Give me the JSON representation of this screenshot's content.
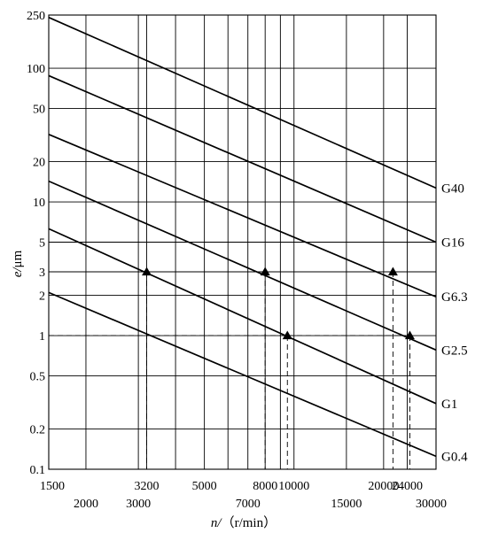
{
  "chart_data": {
    "type": "line",
    "xscale": "log",
    "yscale": "log",
    "xlim": [
      1500,
      30000
    ],
    "ylim": [
      0.1,
      250
    ],
    "xlabel": {
      "var": "n/",
      "unit": "（r/min）"
    },
    "ylabel": {
      "var": "e/",
      "unit": "μm"
    },
    "y_ticks": [
      0.1,
      0.2,
      0.5,
      1,
      2,
      3,
      5,
      10,
      20,
      50,
      100,
      250
    ],
    "x_ticks_top": [
      1500,
      3200,
      5000,
      8000,
      10000,
      20000,
      24000
    ],
    "x_ticks_bottom": [
      2000,
      3000,
      7000,
      15000,
      30000
    ],
    "x_gridlines": [
      1500,
      2000,
      3000,
      3200,
      4000,
      5000,
      6000,
      7000,
      8000,
      9000,
      10000,
      15000,
      20000,
      24000,
      30000
    ],
    "series": [
      {
        "name": "G40",
        "x": [
          1500,
          30000
        ],
        "y": [
          240,
          12.7
        ]
      },
      {
        "name": "G16",
        "x": [
          1500,
          30000
        ],
        "y": [
          88,
          5.0
        ]
      },
      {
        "name": "G6.3",
        "x": [
          1500,
          30000
        ],
        "y": [
          32,
          1.95
        ]
      },
      {
        "name": "G2.5",
        "x": [
          1500,
          30000
        ],
        "y": [
          14.3,
          0.78
        ]
      },
      {
        "name": "G1",
        "x": [
          1500,
          30000
        ],
        "y": [
          6.3,
          0.31
        ]
      },
      {
        "name": "G0.4",
        "x": [
          1500,
          30000
        ],
        "y": [
          2.1,
          0.125
        ]
      }
    ],
    "markers": [
      {
        "x": 3200,
        "y": 3
      },
      {
        "x": 8000,
        "y": 3
      },
      {
        "x": 21500,
        "y": 3
      },
      {
        "x": 9500,
        "y": 1
      },
      {
        "x": 24500,
        "y": 1
      }
    ],
    "h_guides": [
      3,
      1
    ]
  },
  "labels": {
    "y_ticks": [
      "0.1",
      "0.2",
      "0.5",
      "1",
      "2",
      "3",
      "5",
      "10",
      "20",
      "50",
      "100",
      "250"
    ],
    "x_top": [
      "1500",
      "3200",
      "5000",
      "8000",
      "10000",
      "20000",
      "24000"
    ],
    "x_bottom": [
      "2000",
      "3000",
      "7000",
      "15000",
      "30000"
    ],
    "series": [
      "G40",
      "G16",
      "G6.3",
      "G2.5",
      "G1",
      "G0.4"
    ]
  }
}
